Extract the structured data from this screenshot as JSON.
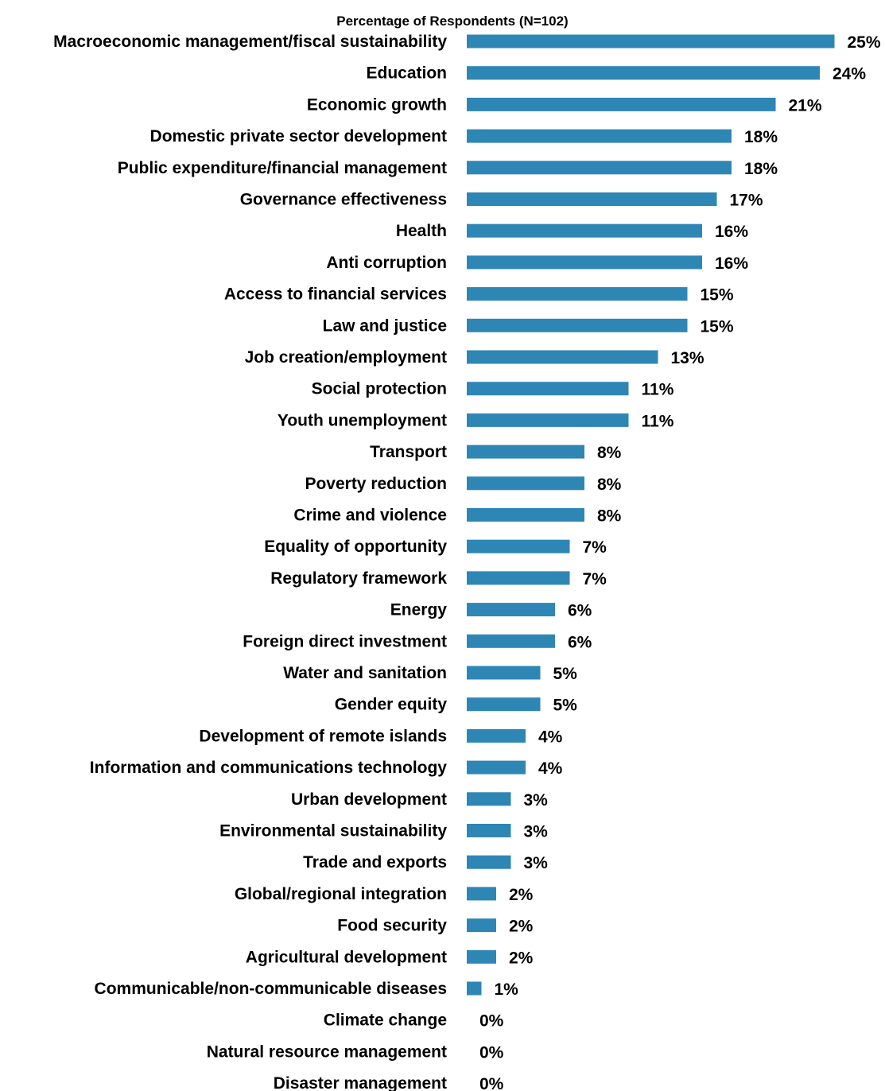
{
  "chart_data": {
    "type": "bar",
    "orientation": "horizontal",
    "title": "Percentage of Respondents (N=102)",
    "xlabel": "",
    "ylabel": "",
    "xlim": [
      0,
      25
    ],
    "grid": false,
    "legend": "none",
    "bar_color": "#2e86b5",
    "categories": [
      "Macroeconomic management/fiscal sustainability",
      "Education",
      "Economic growth",
      "Domestic private sector development",
      "Public expenditure/financial management",
      "Governance effectiveness",
      "Health",
      "Anti corruption",
      "Access to financial services",
      "Law and justice",
      "Job creation/employment",
      "Social protection",
      "Youth unemployment",
      "Transport",
      "Poverty reduction",
      "Crime and violence",
      "Equality of opportunity",
      "Regulatory framework",
      "Energy",
      "Foreign direct investment",
      "Water and sanitation",
      "Gender equity",
      "Development of remote islands",
      "Information and communications technology",
      "Urban development",
      "Environmental sustainability",
      "Trade and exports",
      "Global/regional integration",
      "Food security",
      "Agricultural development",
      "Communicable/non-communicable diseases",
      "Climate change",
      "Natural resource management",
      "Disaster management"
    ],
    "values": [
      25,
      24,
      21,
      18,
      18,
      17,
      16,
      16,
      15,
      15,
      13,
      11,
      11,
      8,
      8,
      8,
      7,
      7,
      6,
      6,
      5,
      5,
      4,
      4,
      3,
      3,
      3,
      2,
      2,
      2,
      1,
      0,
      0,
      0
    ],
    "data_labels": [
      "25%",
      "24%",
      "21%",
      "18%",
      "18%",
      "17%",
      "16%",
      "16%",
      "15%",
      "15%",
      "13%",
      "11%",
      "11%",
      "8%",
      "8%",
      "8%",
      "7%",
      "7%",
      "6%",
      "6%",
      "5%",
      "5%",
      "4%",
      "4%",
      "3%",
      "3%",
      "3%",
      "2%",
      "2%",
      "2%",
      "1%",
      "0%",
      "0%",
      "0%"
    ]
  }
}
